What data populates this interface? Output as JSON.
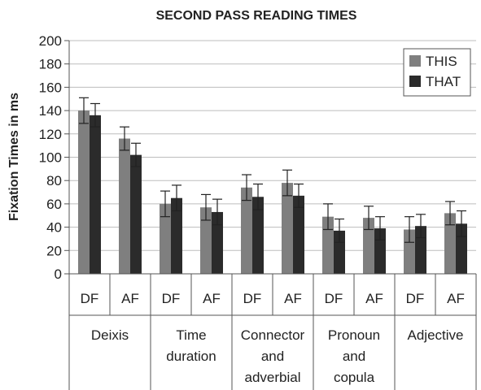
{
  "chart_data": {
    "type": "bar",
    "title": "SECOND PASS READING TIMES",
    "ylabel": "Fixation Times in ms",
    "xlabel": "",
    "ylim": [
      0,
      200
    ],
    "yticks": [
      0,
      20,
      40,
      60,
      80,
      100,
      120,
      140,
      160,
      180,
      200
    ],
    "grid": true,
    "legend_position": "top-right",
    "groups": [
      {
        "name": "Deixis",
        "lines": [
          "Deixis"
        ],
        "sub": [
          "DF",
          "AF"
        ]
      },
      {
        "name": "Time duration",
        "lines": [
          "Time",
          "duration"
        ],
        "sub": [
          "DF",
          "AF"
        ]
      },
      {
        "name": "Connector and adverbial",
        "lines": [
          "Connector",
          "and",
          "adverbial"
        ],
        "sub": [
          "DF",
          "AF"
        ]
      },
      {
        "name": "Pronoun and copula",
        "lines": [
          "Pronoun",
          "and",
          "copula"
        ],
        "sub": [
          "DF",
          "AF"
        ]
      },
      {
        "name": "Adjective",
        "lines": [
          "Adjective"
        ],
        "sub": [
          "DF",
          "AF"
        ]
      }
    ],
    "series": [
      {
        "name": "THIS",
        "color": "#7f7f7f",
        "values": [
          140,
          116,
          60,
          57,
          74,
          78,
          49,
          48,
          38,
          52
        ],
        "errors": [
          11,
          10,
          11,
          11,
          11,
          11,
          11,
          10,
          11,
          10
        ]
      },
      {
        "name": "THAT",
        "color": "#2b2b2b",
        "values": [
          136,
          102,
          65,
          53,
          66,
          67,
          37,
          39,
          41,
          43
        ],
        "errors": [
          10,
          10,
          11,
          11,
          11,
          10,
          10,
          10,
          10,
          11
        ]
      }
    ]
  }
}
